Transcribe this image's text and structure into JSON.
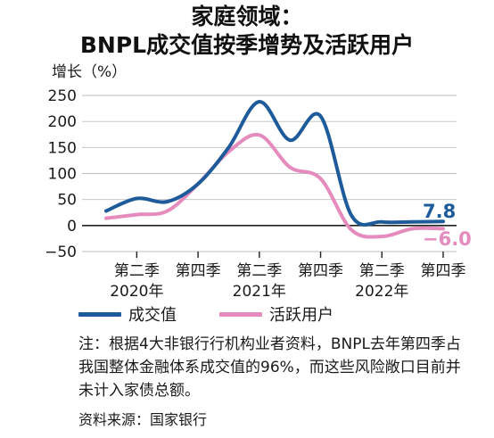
{
  "title_line1": "家庭领域：",
  "title_line2": "BNPL成交值按季增势及活跃用户",
  "legend": [
    {
      "label": "成交值"
    },
    {
      "label": "活跃用户"
    }
  ],
  "note": "注：根据4大非银行行机构业者资料，BNPL去年第四季占我国整体金融体系成交值的96%，而这些风险敞口目前并未计入家债总额。",
  "source": "资料来源：国家银行",
  "colors": {
    "value": "#1e5b9a",
    "users": "#e68bbd",
    "grid": "#bfbfbf"
  },
  "chart_data": {
    "type": "line",
    "ylabel": "增长（%）",
    "ylim": [
      -50,
      250
    ],
    "yticks": [
      "250",
      "200",
      "150",
      "100",
      "50",
      "0",
      "−50"
    ],
    "ytick_values": [
      250,
      200,
      150,
      100,
      50,
      0,
      -50
    ],
    "grid": true,
    "x": [
      "2020Q1",
      "2020Q2",
      "2020Q3",
      "2020Q4",
      "2021Q1",
      "2021Q2",
      "2021Q3",
      "2021Q4",
      "2022Q1",
      "2022Q2",
      "2022Q3",
      "2022Q4"
    ],
    "xticks": [
      {
        "x": "2020Q2",
        "quarter": "第二季",
        "year": "2020年"
      },
      {
        "x": "2020Q4",
        "quarter": "第四季",
        "year": ""
      },
      {
        "x": "2021Q2",
        "quarter": "第二季",
        "year": "2021年"
      },
      {
        "x": "2021Q4",
        "quarter": "第四季",
        "year": ""
      },
      {
        "x": "2022Q2",
        "quarter": "第二季",
        "year": "2022年"
      },
      {
        "x": "2022Q4",
        "quarter": "第四季",
        "year": ""
      }
    ],
    "series": [
      {
        "name": "成交值",
        "end_label": "7.8",
        "values": [
          28,
          52,
          46,
          80,
          150,
          238,
          164,
          210,
          20,
          7,
          7,
          7.8
        ]
      },
      {
        "name": "活跃用户",
        "end_label": "−6.0",
        "values": [
          14,
          21,
          28,
          80,
          142,
          174,
          112,
          90,
          -8,
          -21,
          -6,
          -6
        ]
      }
    ]
  }
}
